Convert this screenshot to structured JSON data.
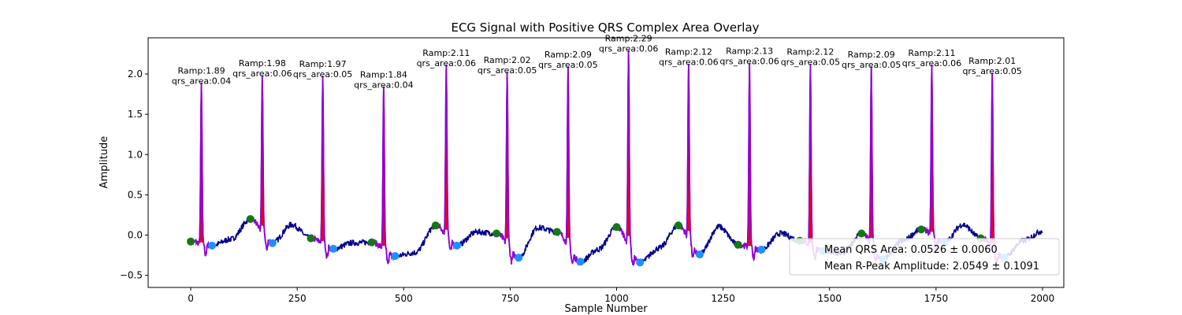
{
  "chart_data": {
    "type": "line",
    "title": "ECG Signal with Positive QRS Complex Area Overlay",
    "xlabel": "Sample Number",
    "ylabel": "Amplitude",
    "xlim": [
      -100,
      2050
    ],
    "ylim": [
      -0.65,
      2.45
    ],
    "xticks": [
      0,
      250,
      500,
      750,
      1000,
      1250,
      1500,
      1750,
      2000
    ],
    "yticks": [
      -0.5,
      0.0,
      0.5,
      1.0,
      1.5,
      2.0
    ],
    "ytick_labels": [
      "−0.5",
      "0.0",
      "0.5",
      "1.0",
      "1.5",
      "2.0"
    ],
    "grid": false,
    "legend_position": "lower-right",
    "colors": {
      "signal": "#00008b",
      "qrs_line": "#9400d3",
      "qrs_fill": "#ff0000",
      "onset": "#137a13",
      "offset": "#1e90ff"
    },
    "r_peaks": [
      {
        "x": 25,
        "y": 1.89,
        "ramp": "Ramp:1.89",
        "area": "qrs_area:0.04"
      },
      {
        "x": 168,
        "y": 1.98,
        "ramp": "Ramp:1.98",
        "area": "qrs_area:0.06"
      },
      {
        "x": 310,
        "y": 1.97,
        "ramp": "Ramp:1.97",
        "area": "qrs_area:0.05"
      },
      {
        "x": 453,
        "y": 1.84,
        "ramp": "Ramp:1.84",
        "area": "qrs_area:0.04"
      },
      {
        "x": 600,
        "y": 2.11,
        "ramp": "Ramp:2.11",
        "area": "qrs_area:0.06"
      },
      {
        "x": 743,
        "y": 2.02,
        "ramp": "Ramp:2.02",
        "area": "qrs_area:0.05"
      },
      {
        "x": 886,
        "y": 2.09,
        "ramp": "Ramp:2.09",
        "area": "qrs_area:0.05"
      },
      {
        "x": 1028,
        "y": 2.29,
        "ramp": "Ramp:2.29",
        "area": "qrs_area:0.06"
      },
      {
        "x": 1169,
        "y": 2.12,
        "ramp": "Ramp:2.12",
        "area": "qrs_area:0.06"
      },
      {
        "x": 1312,
        "y": 2.13,
        "ramp": "Ramp:2.13",
        "area": "qrs_area:0.06"
      },
      {
        "x": 1455,
        "y": 2.12,
        "ramp": "Ramp:2.12",
        "area": "qrs_area:0.05"
      },
      {
        "x": 1598,
        "y": 2.09,
        "ramp": "Ramp:2.09",
        "area": "qrs_area:0.05"
      },
      {
        "x": 1740,
        "y": 2.11,
        "ramp": "Ramp:2.11",
        "area": "qrs_area:0.06"
      },
      {
        "x": 1882,
        "y": 2.01,
        "ramp": "Ramp:2.01",
        "area": "qrs_area:0.05"
      }
    ],
    "onset_points": [
      {
        "x": 0,
        "y": -0.08
      },
      {
        "x": 140,
        "y": 0.2
      },
      {
        "x": 282,
        "y": -0.04
      },
      {
        "x": 425,
        "y": -0.09
      },
      {
        "x": 575,
        "y": 0.12
      },
      {
        "x": 718,
        "y": 0.02
      },
      {
        "x": 860,
        "y": 0.04
      },
      {
        "x": 1000,
        "y": 0.1
      },
      {
        "x": 1145,
        "y": 0.12
      },
      {
        "x": 1285,
        "y": -0.12
      },
      {
        "x": 1430,
        "y": -0.07
      },
      {
        "x": 1575,
        "y": 0.02
      },
      {
        "x": 1715,
        "y": 0.07
      },
      {
        "x": 1855,
        "y": -0.04
      }
    ],
    "offset_points": [
      {
        "x": 50,
        "y": -0.13
      },
      {
        "x": 192,
        "y": -0.1
      },
      {
        "x": 335,
        "y": -0.17
      },
      {
        "x": 480,
        "y": -0.26
      },
      {
        "x": 625,
        "y": -0.13
      },
      {
        "x": 770,
        "y": -0.28
      },
      {
        "x": 915,
        "y": -0.33
      },
      {
        "x": 1055,
        "y": -0.34
      },
      {
        "x": 1195,
        "y": -0.24
      },
      {
        "x": 1340,
        "y": -0.18
      },
      {
        "x": 1485,
        "y": -0.2
      },
      {
        "x": 1625,
        "y": -0.3
      },
      {
        "x": 1770,
        "y": -0.09
      },
      {
        "x": 1910,
        "y": -0.28
      }
    ],
    "legend": [
      "Mean QRS Area: 0.0526 ± 0.0060",
      "Mean R-Peak Amplitude: 2.0549 ± 0.1091"
    ]
  }
}
